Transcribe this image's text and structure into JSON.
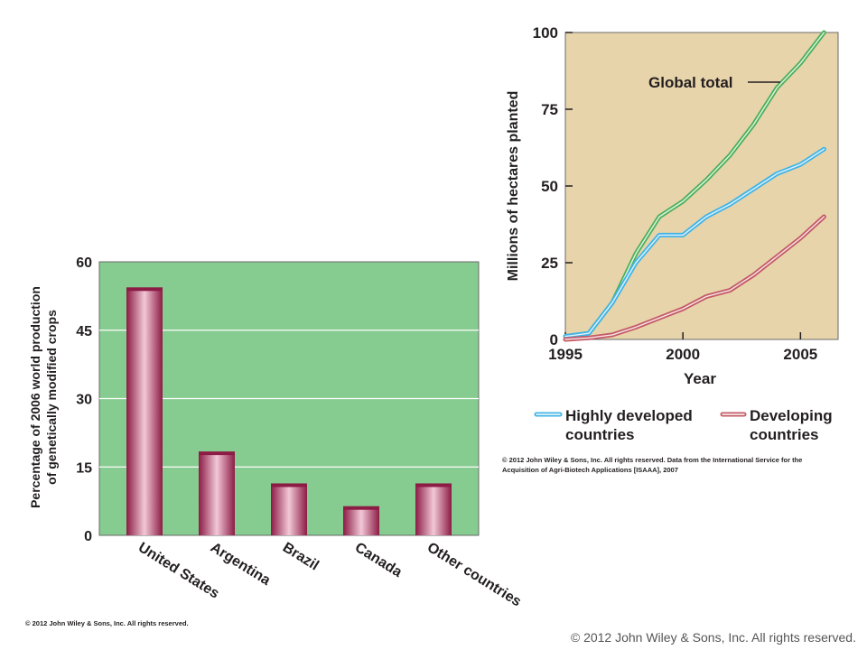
{
  "colors": {
    "bar_panel_bg": "#86cb8f",
    "line_panel_bg": "#e8d4ab",
    "bar_dark": "#8c1b45",
    "bar_light": "#f2c8d6",
    "global_total": "#4cb05a",
    "highly_developed": "#41b4e6",
    "developing": "#c45a66"
  },
  "chart_data": [
    {
      "type": "bar",
      "categories": [
        "United States",
        "Argentina",
        "Brazil",
        "Canada",
        "Other countries"
      ],
      "values": [
        54,
        18,
        11,
        6,
        11
      ],
      "ylabel_lines": [
        "Percentage of 2006 world production",
        "of genetically modified crops"
      ],
      "xlabel": "",
      "ylim": [
        0,
        60
      ],
      "yticks": [
        0,
        15,
        30,
        45,
        60
      ],
      "grid": "horizontal",
      "credit": "© 2012 John Wiley & Sons, Inc. All rights reserved."
    },
    {
      "type": "line",
      "xlabel": "Year",
      "ylabel": "Millions of hectares planted",
      "xlim": [
        1995,
        2006.6
      ],
      "ylim": [
        0,
        100
      ],
      "xticks": [
        1995,
        2000,
        2005
      ],
      "yticks": [
        0,
        25,
        50,
        75,
        100
      ],
      "grid": false,
      "annotation": "Global total",
      "series": [
        {
          "name": "Global total",
          "x": [
            1995,
            1996,
            1997,
            1998,
            1999,
            2000,
            2001,
            2002,
            2003,
            2004,
            2005,
            2006
          ],
          "y": [
            1,
            2,
            12,
            28,
            40,
            45,
            52,
            60,
            70,
            82,
            90,
            100
          ]
        },
        {
          "name": "Highly developed countries",
          "x": [
            1995,
            1996,
            1997,
            1998,
            1999,
            2000,
            2001,
            2002,
            2003,
            2004,
            2005,
            2006
          ],
          "y": [
            1,
            2,
            12,
            25,
            34,
            34,
            40,
            44,
            49,
            54,
            57,
            62
          ]
        },
        {
          "name": "Developing countries",
          "x": [
            1995,
            1996,
            1997,
            1998,
            1999,
            2000,
            2001,
            2002,
            2003,
            2004,
            2005,
            2006
          ],
          "y": [
            0,
            0.5,
            1.5,
            4,
            7,
            10,
            14,
            16,
            21,
            27,
            33,
            40
          ]
        }
      ],
      "legend": [
        "Highly developed countries",
        "Developing countries"
      ],
      "legend_position": "bottom",
      "credit_lines": [
        "© 2012 John Wiley & Sons, Inc. All rights reserved. Data from the International Service for the",
        "Acquisition of Agri-Biotech Applications [ISAAA], 2007"
      ]
    }
  ],
  "footer": {
    "credit": "© 2012 John Wiley & Sons, Inc. All rights reserved."
  }
}
